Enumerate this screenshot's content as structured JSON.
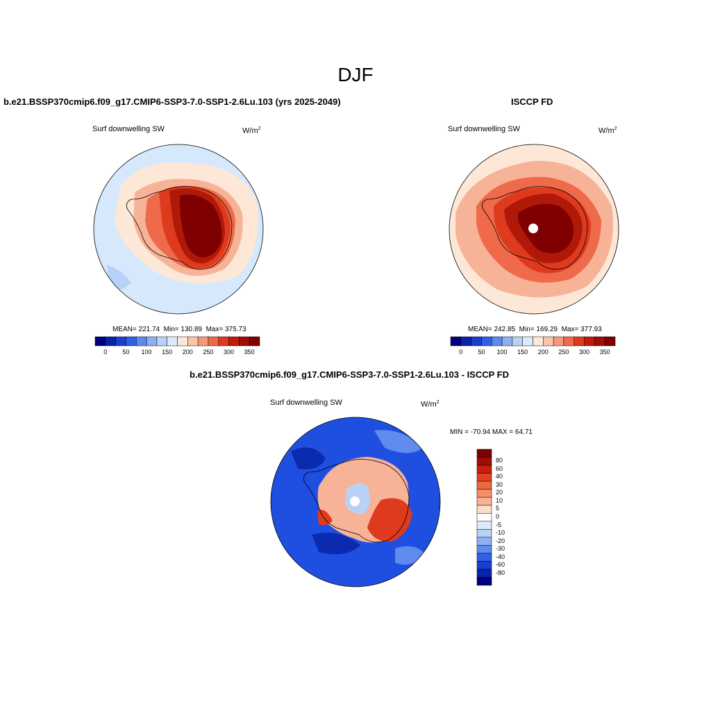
{
  "title": "DJF",
  "panels": {
    "model": {
      "title": "b.e21.BSSP370cmip6.f09_g17.CMIP6-SSP3-7.0-SSP1-2.6Lu.103 (yrs 2025-2049)",
      "variable": "Surf downwelling SW",
      "units_base": "W/m",
      "units_exp": "2",
      "mean_label": "MEAN= 221.74",
      "min_label": "Min= 130.89",
      "max_label": "Max= 375.73"
    },
    "obs": {
      "title": "ISCCP FD",
      "variable": "Surf downwelling SW",
      "units_base": "W/m",
      "units_exp": "2",
      "mean_label": "MEAN= 242.85",
      "min_label": "Min= 169.29",
      "max_label": "Max= 377.93"
    },
    "diff": {
      "title": "b.e21.BSSP370cmip6.f09_g17.CMIP6-SSP3-7.0-SSP1-2.6Lu.103 - ISCCP FD",
      "variable": "Surf downwelling SW",
      "units_base": "W/m",
      "units_exp": "2",
      "minmax_label": "MIN = -70.94 MAX =  64.71"
    }
  },
  "colorbars": {
    "abs": {
      "colors": [
        "#00007f",
        "#0a22a8",
        "#1a3fd0",
        "#3060e6",
        "#5f8aee",
        "#8cb0f2",
        "#b8d2f7",
        "#dcebfb",
        "#fde8d8",
        "#fbc5aa",
        "#f7987a",
        "#ee6a4a",
        "#de3a1e",
        "#c21a0a",
        "#9e0e05",
        "#7f0000"
      ],
      "ticks": [
        "0",
        "50",
        "100",
        "150",
        "200",
        "250",
        "300",
        "350"
      ]
    },
    "diff": {
      "colors": [
        "#7f0000",
        "#a00d05",
        "#c8200a",
        "#e34222",
        "#f0683f",
        "#f58e66",
        "#f8b392",
        "#fcdcc6",
        "#ffffff",
        "#dcebfb",
        "#b8d2f7",
        "#8cb0f2",
        "#5f8aee",
        "#3060e6",
        "#1a3fd0",
        "#0a22a8",
        "#00007f"
      ],
      "ticks": [
        "80",
        "60",
        "40",
        "30",
        "20",
        "10",
        "5",
        "0",
        "-5",
        "-10",
        "-20",
        "-30",
        "-40",
        "-60",
        "-80"
      ]
    }
  },
  "map_colors": {
    "ocean_light_blue": "#d6e8fb",
    "ocean_blue": "#b8d2f7",
    "ocean_mid": "#8cb0f2",
    "peach": "#fde8d8",
    "salmon": "#f7b398",
    "orange": "#ee6a4a",
    "red": "#de3a1e",
    "dark_red": "#b01808",
    "maroon": "#7f0000",
    "diff_blue": "#1f4fe0",
    "diff_deep": "#0a2ab0",
    "diff_light": "#5f8aee"
  }
}
